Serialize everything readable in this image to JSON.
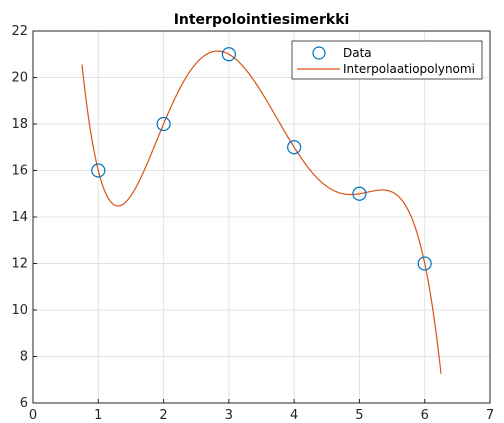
{
  "chart_data": {
    "type": "line",
    "title": "Interpolointiesimerkki",
    "xlabel": "",
    "ylabel": "",
    "xlim": [
      0,
      7
    ],
    "ylim": [
      6,
      22
    ],
    "xticks": [
      0,
      1,
      2,
      3,
      4,
      5,
      6,
      7
    ],
    "yticks": [
      6,
      8,
      10,
      12,
      14,
      16,
      18,
      20,
      22
    ],
    "grid": true,
    "legend_position": "top-right",
    "series": [
      {
        "name": "Data",
        "style": "markers",
        "marker": "circle",
        "color": "#0072BD",
        "x": [
          1,
          2,
          3,
          4,
          5,
          6
        ],
        "y": [
          16,
          18,
          21,
          17,
          15,
          12
        ]
      },
      {
        "name": "Interpolaatiopolynomi",
        "style": "line",
        "color": "#D95319",
        "x_range": [
          0.75,
          6.25
        ],
        "polynomial_through": {
          "x": [
            1,
            2,
            3,
            4,
            5,
            6
          ],
          "y": [
            16,
            18,
            21,
            17,
            15,
            12
          ]
        }
      }
    ]
  }
}
